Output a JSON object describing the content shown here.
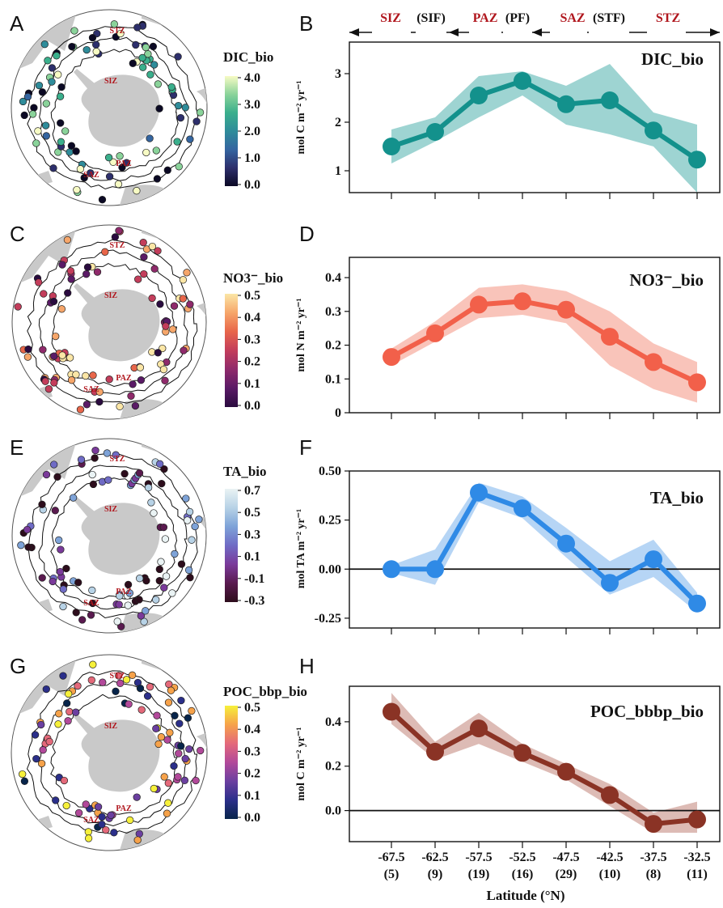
{
  "panel_letters": [
    "A",
    "B",
    "C",
    "D",
    "E",
    "F",
    "G",
    "H"
  ],
  "zones": {
    "labels": [
      "SIZ",
      "PAZ",
      "SAZ",
      "STZ"
    ],
    "fronts": [
      "(SIF)",
      "(PF)",
      "(STF)"
    ]
  },
  "maps": [
    {
      "colorbar_title": "DIC_bio",
      "colorbar_ticks": [
        "4.0",
        "3.0",
        "2.0",
        "1.0",
        "0.0"
      ],
      "colormap": [
        "#0b0924",
        "#2d2f6c",
        "#3465a0",
        "#2f8c9a",
        "#3aaf8c",
        "#8ad39a",
        "#f7fbc4"
      ],
      "map_labels": [
        "STZ",
        "SIZ",
        "PAZ",
        "SAZ"
      ]
    },
    {
      "colorbar_title": "NO3⁻_bio",
      "colorbar_ticks": [
        "0.5",
        "0.4",
        "0.3",
        "0.2",
        "0.1",
        "0.0"
      ],
      "colormap": [
        "#2a0b3f",
        "#5a1a66",
        "#8f2a6b",
        "#c33d5b",
        "#e8664a",
        "#f6a66a",
        "#fbe6a6"
      ],
      "map_labels": [
        "STZ",
        "SIZ",
        "PAZ",
        "SAZ"
      ]
    },
    {
      "colorbar_title": "TA_bio",
      "colorbar_ticks": [
        "0.7",
        "0.5",
        "0.3",
        "0.1",
        "-0.1",
        "-0.3"
      ],
      "colormap": [
        "#2d0d1c",
        "#5a1a4f",
        "#7a3a9a",
        "#6f6bc5",
        "#7ea3d8",
        "#b7d2e6",
        "#eaf3f4"
      ],
      "map_labels": [
        "STZ",
        "SIZ",
        "PAZ",
        "SAZ"
      ]
    },
    {
      "colorbar_title": "POC_bbp_bio",
      "colorbar_ticks": [
        "0.5",
        "0.4",
        "0.3",
        "0.2",
        "0.1",
        "0.0"
      ],
      "colormap": [
        "#07244a",
        "#2b2f8a",
        "#6b3fa0",
        "#b2499a",
        "#e4697a",
        "#f6a24a",
        "#f6f03a"
      ],
      "map_labels": [
        "STZ",
        "SIZ",
        "PAZ",
        "SAZ"
      ]
    }
  ],
  "chart_data": [
    {
      "type": "line",
      "title": "DIC_bio",
      "ylabel": "mol C m⁻² yr⁻¹",
      "x": [
        -67.5,
        -62.5,
        -57.5,
        -52.5,
        -47.5,
        -42.5,
        -37.5,
        -32.5
      ],
      "values": [
        1.5,
        1.8,
        2.55,
        2.85,
        2.37,
        2.45,
        1.83,
        1.23
      ],
      "lower": [
        1.15,
        1.6,
        2.1,
        2.55,
        1.95,
        1.75,
        1.5,
        0.55
      ],
      "upper": [
        1.85,
        2.1,
        2.95,
        3.05,
        2.75,
        3.2,
        2.2,
        1.95
      ],
      "ylim": [
        0.55,
        3.65
      ],
      "yticks": [
        1,
        2,
        3
      ],
      "color": "#13918c",
      "band_color": "#7ec6c3",
      "zero_line": false
    },
    {
      "type": "line",
      "title": "NO3⁻_bio",
      "ylabel": "mol N m⁻² yr⁻¹",
      "x": [
        -67.5,
        -62.5,
        -57.5,
        -52.5,
        -47.5,
        -42.5,
        -37.5,
        -32.5
      ],
      "values": [
        0.165,
        0.235,
        0.32,
        0.33,
        0.305,
        0.225,
        0.15,
        0.09
      ],
      "lower": [
        0.14,
        0.21,
        0.28,
        0.29,
        0.265,
        0.14,
        0.07,
        0.03
      ],
      "upper": [
        0.19,
        0.27,
        0.37,
        0.38,
        0.36,
        0.3,
        0.205,
        0.15
      ],
      "ylim": [
        0.0,
        0.46
      ],
      "yticks": [
        0.0,
        0.1,
        0.2,
        0.3,
        0.4
      ],
      "color": "#f2604a",
      "band_color": "#f7b0a3",
      "zero_line": false
    },
    {
      "type": "line",
      "title": "TA_bio",
      "ylabel": "mol TA m⁻² yr⁻¹",
      "x": [
        -67.5,
        -62.5,
        -57.5,
        -52.5,
        -47.5,
        -42.5,
        -37.5,
        -32.5
      ],
      "values": [
        0.0,
        0.0,
        0.39,
        0.31,
        0.13,
        -0.07,
        0.05,
        -0.175
      ],
      "lower": [
        -0.02,
        -0.08,
        0.34,
        0.26,
        0.06,
        -0.13,
        -0.04,
        -0.22
      ],
      "upper": [
        0.02,
        0.1,
        0.44,
        0.37,
        0.21,
        0.04,
        0.15,
        -0.12
      ],
      "ylim": [
        -0.3,
        0.5
      ],
      "yticks": [
        -0.25,
        0.0,
        0.25,
        0.5
      ],
      "ytick_labels": [
        "-0.25",
        "0.00",
        "0.25",
        "0.50"
      ],
      "color": "#2f8ae6",
      "band_color": "#9dc7f2",
      "zero_line": true
    },
    {
      "type": "line",
      "title": "POC_bbbp_bio",
      "ylabel": "mol C m⁻² yr⁻¹",
      "x": [
        -67.5,
        -62.5,
        -57.5,
        -52.5,
        -47.5,
        -42.5,
        -37.5,
        -32.5
      ],
      "values": [
        0.445,
        0.265,
        0.37,
        0.26,
        0.175,
        0.07,
        -0.06,
        -0.04
      ],
      "lower": [
        0.39,
        0.23,
        0.3,
        0.22,
        0.14,
        0.02,
        -0.1,
        -0.1
      ],
      "upper": [
        0.53,
        0.31,
        0.44,
        0.3,
        0.21,
        0.12,
        -0.01,
        0.04
      ],
      "ylim": [
        -0.14,
        0.56
      ],
      "yticks": [
        0.0,
        0.2,
        0.4
      ],
      "ytick_labels": [
        "0.0",
        "0.2",
        "0.4"
      ],
      "color": "#8a3325",
      "band_color": "#d2a49c",
      "zero_line": true
    }
  ],
  "x_axis": {
    "tick_labels": [
      "-67.5",
      "-62.5",
      "-57.5",
      "-52.5",
      "-47.5",
      "-42.5",
      "-37.5",
      "-32.5"
    ],
    "counts": [
      "(5)",
      "(9)",
      "(19)",
      "(16)",
      "(29)",
      "(10)",
      "(8)",
      "(11)"
    ],
    "label": "Latitude (°N)"
  }
}
